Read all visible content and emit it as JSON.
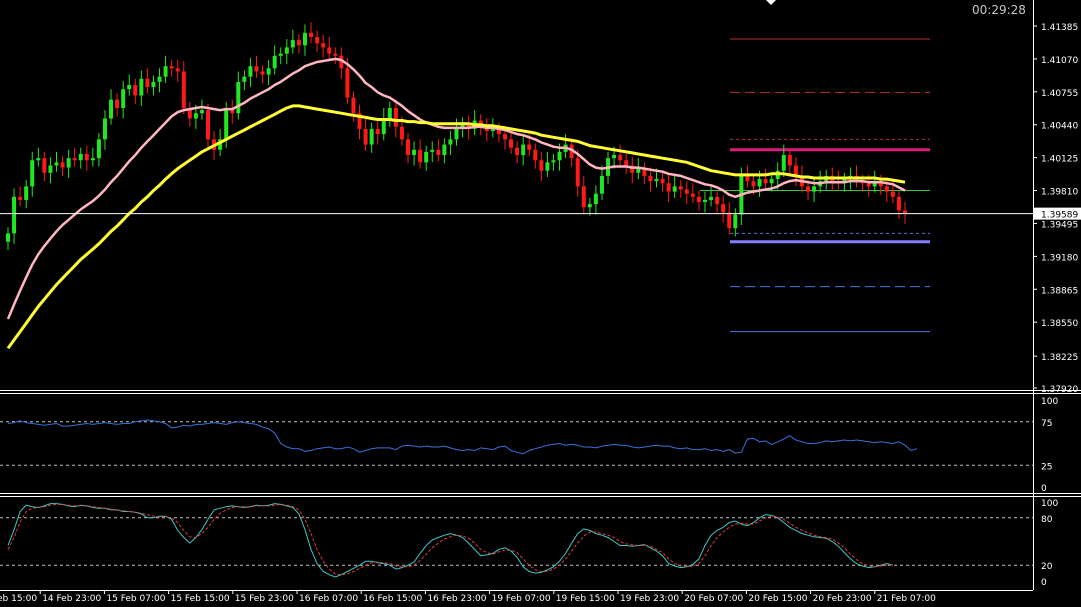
{
  "clock": "00:29:28",
  "chart_data": [
    {
      "type": "candlestick",
      "pane": "price",
      "y_ticks": [
        "1.41385",
        "1.41070",
        "1.40755",
        "1.40440",
        "1.40125",
        "1.39810",
        "1.39495",
        "1.39180",
        "1.38865",
        "1.38550",
        "1.38225",
        "1.37920"
      ],
      "ylim": [
        1.3792,
        1.4155
      ],
      "current_price": "1.39589",
      "x_ticks": [
        "14 Feb 15:00",
        "14 Feb 23:00",
        "15 Feb 07:00",
        "15 Feb 15:00",
        "15 Feb 23:00",
        "16 Feb 07:00",
        "16 Feb 15:00",
        "16 Feb 23:00",
        "19 Feb 07:00",
        "19 Feb 15:00",
        "19 Feb 23:00",
        "20 Feb 07:00",
        "20 Feb 15:00",
        "20 Feb 23:00",
        "21 Feb 07:00"
      ],
      "closes": [
        1.394,
        1.3975,
        1.3972,
        1.3985,
        1.401,
        1.4012,
        1.3998,
        1.4005,
        1.4008,
        1.4003,
        1.4012,
        1.401,
        1.4016,
        1.401,
        1.4012,
        1.403,
        1.405,
        1.4068,
        1.406,
        1.4078,
        1.4082,
        1.4072,
        1.4088,
        1.408,
        1.4085,
        1.409,
        1.41,
        1.4098,
        1.4095,
        1.406,
        1.405,
        1.4055,
        1.4058,
        1.403,
        1.402,
        1.403,
        1.406,
        1.4055,
        1.4085,
        1.409,
        1.41,
        1.4095,
        1.4092,
        1.4098,
        1.411,
        1.4112,
        1.4118,
        1.4125,
        1.412,
        1.4132,
        1.4128,
        1.4122,
        1.4118,
        1.4112,
        1.411,
        1.4098,
        1.407,
        1.4055,
        1.404,
        1.4025,
        1.404,
        1.4035,
        1.405,
        1.406,
        1.4042,
        1.403,
        1.4015,
        1.402,
        1.4008,
        1.4018,
        1.402,
        1.4015,
        1.4025,
        1.403,
        1.404,
        1.4045,
        1.404,
        1.4048,
        1.4042,
        1.4038,
        1.404,
        1.4035,
        1.403,
        1.4022,
        1.4015,
        1.4025,
        1.402,
        1.401,
        1.4,
        1.4008,
        1.401,
        1.4018,
        1.4025,
        1.4012,
        1.3985,
        1.3965,
        1.3968,
        1.3978,
        1.3995,
        1.4012,
        1.4015,
        1.401,
        1.4005,
        1.3998,
        1.4002,
        1.3995,
        1.399,
        1.3992,
        1.3988,
        1.398,
        1.3985,
        1.3982,
        1.3978,
        1.3975,
        1.397,
        1.3972,
        1.3975,
        1.3968,
        1.396,
        1.3945,
        1.3958,
        1.3995,
        1.399,
        1.3985,
        1.3992,
        1.3988,
        1.3992,
        1.4,
        1.4015,
        1.4005,
        1.3995,
        1.3985,
        1.398,
        1.3985,
        1.399,
        1.3995,
        1.399,
        1.3988,
        1.3992,
        1.3995,
        1.399,
        1.3988,
        1.3985,
        1.399,
        1.3985,
        1.398,
        1.3975,
        1.3962,
        1.3959
      ],
      "series": [
        {
          "name": "",
          "color": "#ffb6c1",
          "values": [
            1.3858,
            1.3872,
            1.3885,
            1.3898,
            1.391,
            1.392,
            1.3928,
            1.3935,
            1.3942,
            1.3948,
            1.3953,
            1.3958,
            1.3963,
            1.3967,
            1.3971,
            1.3976,
            1.3982,
            1.3989,
            1.3995,
            1.4002,
            1.4009,
            1.4015,
            1.4022,
            1.4028,
            1.4034,
            1.404,
            1.4046,
            1.4052,
            1.4056,
            1.4058,
            1.4059,
            1.406,
            1.4061,
            1.406,
            1.4059,
            1.4058,
            1.4059,
            1.4059,
            1.4062,
            1.4065,
            1.4069,
            1.4072,
            1.4075,
            1.4078,
            1.4082,
            1.4085,
            1.4089,
            1.4093,
            1.4096,
            1.41,
            1.4102,
            1.4104,
            1.4105,
            1.4106,
            1.4107,
            1.4106,
            1.4102,
            1.4097,
            1.4091,
            1.4084,
            1.408,
            1.4075,
            1.4072,
            1.407,
            1.4066,
            1.4062,
            1.4057,
            1.4053,
            1.4049,
            1.4046,
            1.4044,
            1.4042,
            1.4041,
            1.4041,
            1.4041,
            1.4041,
            1.4041,
            1.4042,
            1.4042,
            1.4041,
            1.4041,
            1.404,
            1.4039,
            1.4037,
            1.4035,
            1.4034,
            1.4032,
            1.403,
            1.4027,
            1.4025,
            1.4023,
            1.4022,
            1.4022,
            1.402,
            1.4016,
            1.4011,
            1.4006,
            1.4003,
            1.4002,
            1.4003,
            1.4004,
            1.4004,
            1.4004,
            1.4003,
            1.4003,
            1.4002,
            1.4001,
            1.4,
            1.3999,
            1.3997,
            1.3996,
            1.3995,
            1.3993,
            1.3991,
            1.3989,
            1.3987,
            1.3986,
            1.3984,
            1.3981,
            1.3977,
            1.3975,
            1.3977,
            1.3979,
            1.398,
            1.3981,
            1.3982,
            1.3983,
            1.3985,
            1.3988,
            1.399,
            1.3991,
            1.399,
            1.3989,
            1.3988,
            1.3988,
            1.3989,
            1.3989,
            1.3989,
            1.3989,
            1.399,
            1.399,
            1.399,
            1.3989,
            1.3989,
            1.3989,
            1.3988,
            1.3987,
            1.3984,
            1.3981
          ]
        },
        {
          "name": "",
          "color": "#ffff33",
          "values": [
            1.383,
            1.3838,
            1.3846,
            1.3854,
            1.3862,
            1.387,
            1.3877,
            1.3884,
            1.3891,
            1.3897,
            1.3903,
            1.3909,
            1.3915,
            1.392,
            1.3925,
            1.393,
            1.3936,
            1.3942,
            1.3947,
            1.3953,
            1.3959,
            1.3964,
            1.397,
            1.3975,
            1.3981,
            1.3986,
            1.3992,
            1.3997,
            1.4002,
            1.4006,
            1.401,
            1.4014,
            1.4018,
            1.4021,
            1.4024,
            1.4027,
            1.403,
            1.4033,
            1.4036,
            1.4039,
            1.4042,
            1.4045,
            1.4048,
            1.4051,
            1.4054,
            1.4057,
            1.406,
            1.4062,
            1.4062,
            1.4061,
            1.406,
            1.4059,
            1.4058,
            1.4057,
            1.4056,
            1.4055,
            1.4054,
            1.4053,
            1.4052,
            1.4051,
            1.405,
            1.4049,
            1.4049,
            1.4049,
            1.4048,
            1.4048,
            1.4047,
            1.4047,
            1.4046,
            1.4046,
            1.4045,
            1.4045,
            1.4045,
            1.4045,
            1.4045,
            1.4045,
            1.4045,
            1.4044,
            1.4044,
            1.4043,
            1.4043,
            1.4042,
            1.4041,
            1.404,
            1.4039,
            1.4038,
            1.4037,
            1.4036,
            1.4034,
            1.4033,
            1.4032,
            1.4031,
            1.403,
            1.4029,
            1.4028,
            1.4026,
            1.4024,
            1.4023,
            1.4022,
            1.4021,
            1.402,
            1.4019,
            1.4018,
            1.4017,
            1.4016,
            1.4015,
            1.4014,
            1.4013,
            1.4012,
            1.4011,
            1.401,
            1.4009,
            1.4008,
            1.4006,
            1.4004,
            1.4002,
            1.4,
            1.3999,
            1.3998,
            1.3997,
            1.3996,
            1.3996,
            1.3996,
            1.3996,
            1.3996,
            1.3996,
            1.3997,
            1.3997,
            1.3997,
            1.3996,
            1.3995,
            1.3994,
            1.3994,
            1.3993,
            1.3993,
            1.3993,
            1.3993,
            1.3993,
            1.3993,
            1.3993,
            1.3993,
            1.3993,
            1.3993,
            1.3993,
            1.3992,
            1.3992,
            1.3991,
            1.399,
            1.3989
          ]
        }
      ],
      "levels": [
        {
          "value": 1.4126,
          "color": "#b53030",
          "style": "solid"
        },
        {
          "value": 1.4075,
          "color": "#b53030",
          "style": "dashed"
        },
        {
          "value": 1.403,
          "color": "#b53030",
          "style": "dotted"
        },
        {
          "value": 1.402,
          "color": "#d81b7a",
          "style": "bold"
        },
        {
          "value": 1.3981,
          "color": "#3cc83c",
          "style": "solid"
        },
        {
          "value": 1.394,
          "color": "#4a78e0",
          "style": "dotted"
        },
        {
          "value": 1.3932,
          "color": "#8080ff",
          "style": "bold"
        },
        {
          "value": 1.3889,
          "color": "#4a78e0",
          "style": "dashed"
        },
        {
          "value": 1.3846,
          "color": "#4a78e0",
          "style": "solid"
        }
      ]
    },
    {
      "type": "line",
      "pane": "oscillator-1",
      "y_ticks": [
        "100",
        "75",
        "25",
        "0"
      ],
      "ylim": [
        0,
        100
      ],
      "levels": [
        75,
        25
      ],
      "series": [
        {
          "name": "",
          "color": "#3b6fd8",
          "values": [
            73,
            74,
            76,
            74,
            73,
            72,
            71,
            72,
            73,
            70,
            70,
            71,
            72,
            73,
            72,
            73,
            74,
            73,
            72,
            73,
            73,
            75,
            76,
            77,
            76,
            75,
            73,
            68,
            69,
            71,
            70,
            72,
            72,
            73,
            74,
            73,
            72,
            74,
            75,
            74,
            73,
            72,
            69,
            67,
            62,
            50,
            46,
            44,
            44,
            41,
            42,
            44,
            45,
            46,
            44,
            44,
            46,
            44,
            40,
            42,
            44,
            45,
            45,
            45,
            43,
            47,
            48,
            47,
            46,
            47,
            46,
            46,
            47,
            45,
            43,
            42,
            43,
            42,
            45,
            44,
            43,
            46,
            47,
            42,
            40,
            38,
            42,
            44,
            46,
            48,
            49,
            50,
            48,
            49,
            48,
            46,
            46,
            45,
            47,
            48,
            49,
            48,
            48,
            46,
            45,
            46,
            47,
            48,
            47,
            47,
            45,
            44,
            45,
            43,
            43,
            44,
            42,
            43,
            41,
            43,
            39,
            40,
            55,
            56,
            52,
            53,
            49,
            52,
            55,
            59,
            54,
            52,
            50,
            50,
            51,
            53,
            52,
            53,
            54,
            53,
            54,
            53,
            52,
            51,
            52,
            51,
            50,
            52,
            48,
            42,
            44
          ]
        },
        {
          "name": "",
          "color": "#ffffff",
          "values": []
        }
      ]
    },
    {
      "type": "line",
      "pane": "oscillator-2",
      "y_ticks": [
        "100",
        "80",
        "20",
        "0"
      ],
      "ylim": [
        0,
        100
      ],
      "levels": [
        80,
        20
      ],
      "series": [
        {
          "name": "",
          "color": "#3ec8c8",
          "values": [
            45,
            65,
            88,
            96,
            94,
            93,
            95,
            98,
            98,
            97,
            95,
            94,
            96,
            95,
            93,
            92,
            92,
            90,
            90,
            88,
            88,
            87,
            85,
            80,
            80,
            82,
            82,
            78,
            64,
            55,
            48,
            55,
            65,
            78,
            90,
            92,
            94,
            95,
            94,
            93,
            94,
            96,
            95,
            96,
            98,
            97,
            95,
            93,
            85,
            65,
            40,
            22,
            12,
            8,
            5,
            8,
            12,
            16,
            20,
            25,
            25,
            23,
            22,
            20,
            15,
            17,
            20,
            24,
            35,
            45,
            52,
            55,
            58,
            60,
            58,
            55,
            48,
            40,
            32,
            33,
            35,
            40,
            42,
            38,
            30,
            18,
            12,
            10,
            11,
            14,
            18,
            25,
            35,
            48,
            60,
            66,
            64,
            60,
            58,
            55,
            50,
            45,
            45,
            44,
            45,
            46,
            42,
            38,
            32,
            22,
            19,
            17,
            18,
            21,
            28,
            45,
            58,
            64,
            68,
            74,
            76,
            72,
            70,
            74,
            80,
            84,
            83,
            80,
            74,
            68,
            64,
            60,
            58,
            56,
            55,
            54,
            50,
            44,
            36,
            28,
            22,
            19,
            17,
            18,
            20,
            22,
            20
          ]
        },
        {
          "name": "",
          "color": "#e23c3c",
          "values": [
            40,
            55,
            75,
            88,
            92,
            93,
            94,
            96,
            97,
            97,
            96,
            95,
            95,
            95,
            94,
            93,
            92,
            91,
            90,
            89,
            88,
            87,
            86,
            84,
            82,
            81,
            81,
            80,
            74,
            64,
            56,
            55,
            60,
            68,
            78,
            86,
            90,
            93,
            94,
            94,
            94,
            95,
            95,
            95,
            96,
            97,
            96,
            94,
            90,
            78,
            60,
            40,
            25,
            15,
            9,
            8,
            9,
            12,
            16,
            20,
            23,
            24,
            23,
            22,
            19,
            18,
            18,
            20,
            26,
            34,
            42,
            48,
            53,
            56,
            58,
            57,
            54,
            48,
            40,
            36,
            34,
            37,
            39,
            39,
            36,
            28,
            20,
            14,
            12,
            12,
            15,
            20,
            28,
            38,
            48,
            57,
            62,
            62,
            60,
            58,
            55,
            50,
            47,
            46,
            45,
            45,
            44,
            40,
            36,
            28,
            22,
            19,
            18,
            19,
            22,
            32,
            45,
            55,
            62,
            68,
            72,
            73,
            72,
            72,
            76,
            80,
            82,
            81,
            78,
            73,
            68,
            64,
            61,
            58,
            56,
            55,
            53,
            48,
            42,
            34,
            27,
            22,
            19,
            18,
            19,
            20,
            21
          ]
        }
      ]
    }
  ]
}
